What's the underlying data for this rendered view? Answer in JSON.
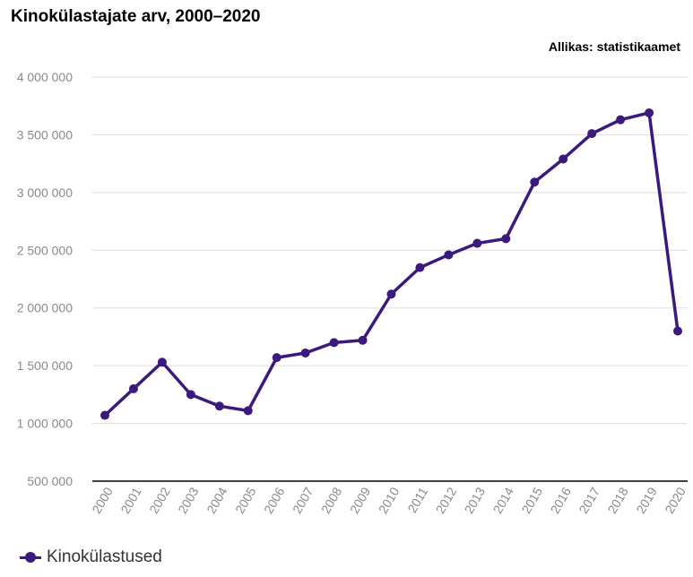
{
  "header": {
    "title": "Kinokülastajate arv, 2000–2020",
    "source": "Allikas: statistikaamet"
  },
  "colors": {
    "series": "#3b1a7e",
    "grid": "#dddddd",
    "axis": "#000000"
  },
  "chart_data": {
    "type": "line",
    "title": "Kinokülastajate arv, 2000–2020",
    "xlabel": "",
    "ylabel": "",
    "ylim": [
      500000,
      4000000
    ],
    "yticks": [
      500000,
      1000000,
      1500000,
      2000000,
      2500000,
      3000000,
      3500000,
      4000000
    ],
    "ytick_labels": [
      "500 000",
      "1 000 000",
      "1 500 000",
      "2 000 000",
      "2 500 000",
      "3 000 000",
      "3 500 000",
      "4 000 000"
    ],
    "x": [
      "2000",
      "2001",
      "2002",
      "2003",
      "2004",
      "2005",
      "2006",
      "2007",
      "2008",
      "2009",
      "2010",
      "2011",
      "2012",
      "2013",
      "2014",
      "2015",
      "2016",
      "2017",
      "2018",
      "2019",
      "2020"
    ],
    "grid": true,
    "legend_position": "bottom-left",
    "series": [
      {
        "name": "Kinokülastused",
        "values": [
          1070000,
          1300000,
          1530000,
          1250000,
          1150000,
          1110000,
          1570000,
          1610000,
          1700000,
          1720000,
          2120000,
          2350000,
          2460000,
          2560000,
          2600000,
          3090000,
          3290000,
          3510000,
          3630000,
          3690000,
          1800000
        ]
      }
    ]
  }
}
